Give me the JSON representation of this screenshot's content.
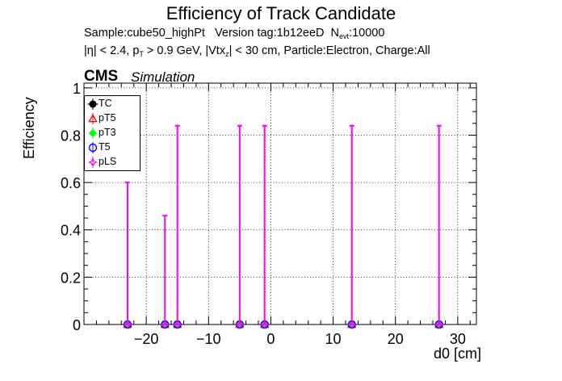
{
  "title": "Efficiency of Track Candidate",
  "sample_info": {
    "sample": "Sample:cube50_highPt",
    "version": "Version tag:1b12eeD",
    "nevt_label": "N",
    "nevt_sub": "evt",
    "nevt_value": ":10000"
  },
  "cuts_info": {
    "eta": "|η| < 2.4, p",
    "pt_sub": "T",
    "pt_cut": " > 0.9 GeV, |Vtx",
    "vtx_sub": "z",
    "rest": "| < 30 cm, Particle:Electron, Charge:All"
  },
  "cms_label": "CMS",
  "simulation_label": "Simulation",
  "colors": {
    "TC": "#000000",
    "pT5": "#ff0000",
    "pT3": "#00ff00",
    "T5": "#0000ff",
    "pLS": "#ff00ff",
    "grid": "#000000"
  },
  "chart_data": {
    "type": "scatter",
    "title": "Efficiency of Track Candidate",
    "xlabel": "d0 [cm]",
    "ylabel": "Efficiency",
    "xlim": [
      -30,
      33
    ],
    "ylim": [
      0,
      1.02
    ],
    "xticks": [
      -20,
      -10,
      0,
      10,
      20,
      30
    ],
    "xtick_labels": [
      "−20",
      "−10",
      "0",
      "10",
      "20",
      "30"
    ],
    "yticks": [
      0,
      0.2,
      0.4,
      0.6,
      0.8,
      1
    ],
    "ytick_labels": [
      "0",
      "0.2",
      "0.4",
      "0.6",
      "0.8",
      "1"
    ],
    "grid": true,
    "legend_position": "top-left",
    "x": [
      -23,
      -17,
      -15,
      -5,
      -1,
      13,
      27
    ],
    "series": [
      {
        "name": "TC",
        "values": [
          0,
          0,
          0,
          0,
          0,
          0,
          0
        ]
      },
      {
        "name": "pT5",
        "values": [
          0,
          0,
          0,
          0,
          0,
          0,
          0
        ]
      },
      {
        "name": "pT3",
        "values": [
          0,
          0,
          0,
          0,
          0,
          0,
          0
        ]
      },
      {
        "name": "T5",
        "values": [
          0,
          0,
          0,
          0,
          0,
          0,
          0
        ]
      },
      {
        "name": "pLS",
        "values": [
          0,
          0,
          0,
          0,
          0,
          0,
          0
        ],
        "error_high": [
          0.6,
          0.46,
          0.84,
          0.84,
          0.84,
          0.84,
          0.84
        ]
      }
    ]
  }
}
